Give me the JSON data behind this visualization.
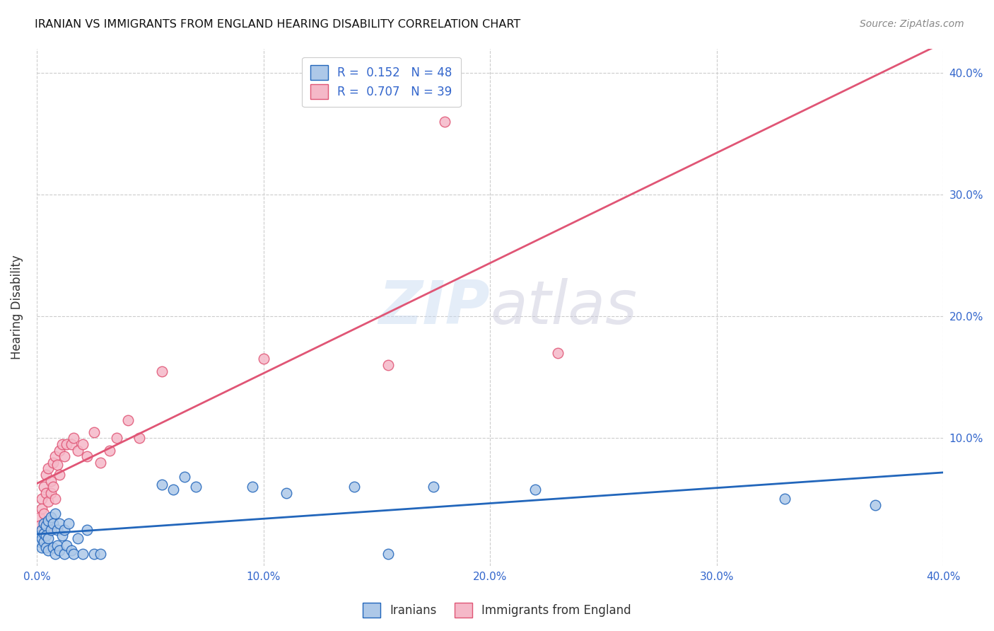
{
  "title": "IRANIAN VS IMMIGRANTS FROM ENGLAND HEARING DISABILITY CORRELATION CHART",
  "source": "Source: ZipAtlas.com",
  "ylabel": "Hearing Disability",
  "xlim": [
    0.0,
    0.4
  ],
  "ylim": [
    -0.005,
    0.42
  ],
  "ytick_values": [
    0.1,
    0.2,
    0.3,
    0.4
  ],
  "xtick_values": [
    0.0,
    0.1,
    0.2,
    0.3,
    0.4
  ],
  "iranians_color": "#adc8e8",
  "england_color": "#f5b8c8",
  "iranians_line_color": "#2266bb",
  "england_line_color": "#e05575",
  "iranians_R": 0.152,
  "iranians_N": 48,
  "england_R": 0.707,
  "england_N": 39,
  "legend_label_color": "#3366cc",
  "background_color": "#ffffff",
  "grid_color": "#cccccc",
  "iranians_x": [
    0.001,
    0.001,
    0.002,
    0.002,
    0.002,
    0.003,
    0.003,
    0.003,
    0.004,
    0.004,
    0.004,
    0.005,
    0.005,
    0.005,
    0.006,
    0.006,
    0.007,
    0.007,
    0.008,
    0.008,
    0.009,
    0.009,
    0.01,
    0.01,
    0.011,
    0.012,
    0.012,
    0.013,
    0.014,
    0.015,
    0.016,
    0.018,
    0.02,
    0.022,
    0.025,
    0.028,
    0.055,
    0.06,
    0.065,
    0.07,
    0.095,
    0.11,
    0.14,
    0.155,
    0.175,
    0.22,
    0.33,
    0.37
  ],
  "iranians_y": [
    0.02,
    0.015,
    0.025,
    0.018,
    0.01,
    0.03,
    0.022,
    0.015,
    0.028,
    0.02,
    0.01,
    0.032,
    0.018,
    0.008,
    0.035,
    0.025,
    0.03,
    0.01,
    0.038,
    0.005,
    0.025,
    0.012,
    0.03,
    0.008,
    0.02,
    0.025,
    0.005,
    0.012,
    0.03,
    0.008,
    0.005,
    0.018,
    0.005,
    0.025,
    0.005,
    0.005,
    0.062,
    0.058,
    0.068,
    0.06,
    0.06,
    0.055,
    0.06,
    0.005,
    0.06,
    0.058,
    0.05,
    0.045
  ],
  "england_x": [
    0.001,
    0.001,
    0.002,
    0.002,
    0.003,
    0.003,
    0.004,
    0.004,
    0.005,
    0.005,
    0.005,
    0.006,
    0.006,
    0.007,
    0.007,
    0.008,
    0.008,
    0.009,
    0.01,
    0.01,
    0.011,
    0.012,
    0.013,
    0.015,
    0.016,
    0.018,
    0.02,
    0.022,
    0.025,
    0.028,
    0.032,
    0.035,
    0.04,
    0.045,
    0.055,
    0.1,
    0.155,
    0.18,
    0.23
  ],
  "england_y": [
    0.035,
    0.028,
    0.05,
    0.042,
    0.06,
    0.038,
    0.07,
    0.055,
    0.075,
    0.048,
    0.025,
    0.065,
    0.055,
    0.08,
    0.06,
    0.085,
    0.05,
    0.078,
    0.09,
    0.07,
    0.095,
    0.085,
    0.095,
    0.095,
    0.1,
    0.09,
    0.095,
    0.085,
    0.105,
    0.08,
    0.09,
    0.1,
    0.115,
    0.1,
    0.155,
    0.165,
    0.16,
    0.36,
    0.17
  ]
}
